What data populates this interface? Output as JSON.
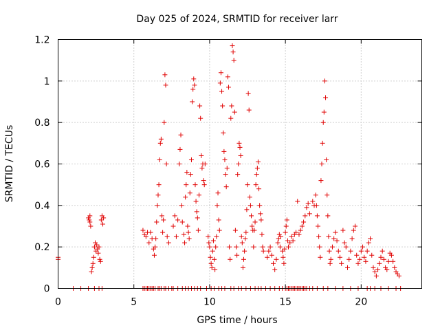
{
  "chart_data": {
    "type": "scatter",
    "title": "Day 025 of 2024, SRMTID for receiver larr",
    "xlabel": "GPS time / hours",
    "ylabel": "SRMTID / TECUs",
    "xlim": [
      0,
      24
    ],
    "ylim": [
      0,
      1.2
    ],
    "xticks": [
      0,
      5,
      10,
      15,
      20
    ],
    "yticks": [
      0,
      0.2,
      0.4,
      0.6,
      0.8,
      1,
      1.2
    ],
    "ytick_labels": [
      "0",
      "0.2",
      "0.4",
      "0.6",
      "0.8",
      "1",
      "1.2"
    ],
    "grid": true,
    "marker": "+",
    "series": [
      {
        "name": "SRMTID",
        "color": "#e00000",
        "points": [
          [
            0.0,
            0.15
          ],
          [
            0.0,
            0.14
          ],
          [
            2.0,
            0.34
          ],
          [
            2.05,
            0.33
          ],
          [
            2.1,
            0.32
          ],
          [
            2.15,
            0.3
          ],
          [
            2.1,
            0.35
          ],
          [
            2.2,
            0.08
          ],
          [
            2.25,
            0.1
          ],
          [
            2.3,
            0.12
          ],
          [
            2.35,
            0.15
          ],
          [
            2.4,
            0.2
          ],
          [
            2.45,
            0.22
          ],
          [
            2.5,
            0.18
          ],
          [
            2.55,
            0.21
          ],
          [
            2.6,
            0.19
          ],
          [
            2.65,
            0.17
          ],
          [
            2.7,
            0.2
          ],
          [
            2.75,
            0.14
          ],
          [
            2.8,
            0.13
          ],
          [
            2.85,
            0.33
          ],
          [
            2.9,
            0.35
          ],
          [
            2.95,
            0.31
          ],
          [
            3.0,
            0.34
          ],
          [
            5.6,
            0.28
          ],
          [
            5.7,
            0.26
          ],
          [
            5.8,
            0.25
          ],
          [
            5.9,
            0.27
          ],
          [
            6.0,
            0.22
          ],
          [
            6.1,
            0.27
          ],
          [
            6.2,
            0.24
          ],
          [
            6.3,
            0.19
          ],
          [
            6.35,
            0.16
          ],
          [
            6.4,
            0.2
          ],
          [
            6.45,
            0.24
          ],
          [
            6.5,
            0.32
          ],
          [
            6.55,
            0.4
          ],
          [
            6.6,
            0.45
          ],
          [
            6.65,
            0.5
          ],
          [
            6.7,
            0.62
          ],
          [
            6.75,
            0.7
          ],
          [
            6.8,
            0.72
          ],
          [
            6.85,
            0.35
          ],
          [
            6.9,
            0.27
          ],
          [
            6.95,
            0.33
          ],
          [
            7.0,
            0.8
          ],
          [
            7.05,
            1.03
          ],
          [
            7.1,
            0.98
          ],
          [
            7.15,
            0.6
          ],
          [
            7.2,
            0.25
          ],
          [
            7.3,
            0.22
          ],
          [
            7.6,
            0.3
          ],
          [
            7.7,
            0.35
          ],
          [
            7.8,
            0.25
          ],
          [
            7.9,
            0.33
          ],
          [
            8.0,
            0.6
          ],
          [
            8.05,
            0.67
          ],
          [
            8.1,
            0.74
          ],
          [
            8.15,
            0.4
          ],
          [
            8.2,
            0.32
          ],
          [
            8.3,
            0.26
          ],
          [
            8.35,
            0.22
          ],
          [
            8.4,
            0.44
          ],
          [
            8.45,
            0.5
          ],
          [
            8.5,
            0.56
          ],
          [
            8.55,
            0.3
          ],
          [
            8.6,
            0.27
          ],
          [
            8.65,
            0.24
          ],
          [
            8.7,
            0.46
          ],
          [
            8.75,
            0.55
          ],
          [
            8.8,
            0.62
          ],
          [
            8.85,
            0.9
          ],
          [
            8.9,
            0.96
          ],
          [
            8.95,
            1.01
          ],
          [
            9.0,
            0.98
          ],
          [
            9.05,
            0.5
          ],
          [
            9.1,
            0.42
          ],
          [
            9.15,
            0.37
          ],
          [
            9.2,
            0.34
          ],
          [
            9.25,
            0.28
          ],
          [
            9.3,
            0.45
          ],
          [
            9.35,
            0.88
          ],
          [
            9.4,
            0.82
          ],
          [
            9.45,
            0.64
          ],
          [
            9.5,
            0.58
          ],
          [
            9.55,
            0.6
          ],
          [
            9.6,
            0.52
          ],
          [
            9.65,
            0.5
          ],
          [
            9.7,
            0.6
          ],
          [
            9.9,
            0.25
          ],
          [
            9.95,
            0.22
          ],
          [
            10.0,
            0.2
          ],
          [
            10.05,
            0.15
          ],
          [
            10.1,
            0.12
          ],
          [
            10.15,
            0.1
          ],
          [
            10.2,
            0.18
          ],
          [
            10.25,
            0.23
          ],
          [
            10.3,
            0.14
          ],
          [
            10.35,
            0.09
          ],
          [
            10.4,
            0.2
          ],
          [
            10.45,
            0.25
          ],
          [
            10.5,
            0.4
          ],
          [
            10.55,
            0.46
          ],
          [
            10.6,
            0.33
          ],
          [
            10.65,
            0.28
          ],
          [
            10.7,
            0.99
          ],
          [
            10.75,
            1.04
          ],
          [
            10.8,
            0.95
          ],
          [
            10.85,
            0.88
          ],
          [
            10.9,
            0.75
          ],
          [
            10.95,
            0.66
          ],
          [
            11.0,
            0.62
          ],
          [
            11.05,
            0.55
          ],
          [
            11.1,
            0.49
          ],
          [
            11.15,
            0.58
          ],
          [
            11.2,
            1.02
          ],
          [
            11.25,
            0.97
          ],
          [
            11.3,
            0.2
          ],
          [
            11.35,
            0.14
          ],
          [
            11.4,
            0.82
          ],
          [
            11.45,
            0.88
          ],
          [
            11.5,
            1.17
          ],
          [
            11.55,
            1.14
          ],
          [
            11.6,
            1.1
          ],
          [
            11.65,
            0.85
          ],
          [
            11.7,
            0.28
          ],
          [
            11.75,
            0.2
          ],
          [
            11.8,
            0.16
          ],
          [
            11.85,
            0.55
          ],
          [
            11.9,
            0.6
          ],
          [
            11.95,
            0.7
          ],
          [
            12.0,
            0.68
          ],
          [
            12.05,
            0.64
          ],
          [
            12.1,
            0.25
          ],
          [
            12.15,
            0.22
          ],
          [
            12.2,
            0.1
          ],
          [
            12.25,
            0.14
          ],
          [
            12.3,
            0.18
          ],
          [
            12.35,
            0.24
          ],
          [
            12.4,
            0.27
          ],
          [
            12.45,
            0.38
          ],
          [
            12.5,
            0.5
          ],
          [
            12.55,
            0.94
          ],
          [
            12.6,
            0.86
          ],
          [
            12.65,
            0.44
          ],
          [
            12.7,
            0.4
          ],
          [
            12.75,
            0.35
          ],
          [
            12.8,
            0.3
          ],
          [
            12.85,
            0.28
          ],
          [
            12.9,
            0.2
          ],
          [
            12.95,
            0.28
          ],
          [
            13.0,
            0.32
          ],
          [
            13.05,
            0.5
          ],
          [
            13.1,
            0.55
          ],
          [
            13.15,
            0.58
          ],
          [
            13.2,
            0.61
          ],
          [
            13.25,
            0.48
          ],
          [
            13.3,
            0.4
          ],
          [
            13.35,
            0.36
          ],
          [
            13.4,
            0.33
          ],
          [
            13.45,
            0.26
          ],
          [
            13.5,
            0.2
          ],
          [
            13.55,
            0.18
          ],
          [
            13.8,
            0.15
          ],
          [
            13.9,
            0.18
          ],
          [
            14.0,
            0.2
          ],
          [
            14.1,
            0.16
          ],
          [
            14.2,
            0.12
          ],
          [
            14.3,
            0.09
          ],
          [
            14.4,
            0.14
          ],
          [
            14.5,
            0.22
          ],
          [
            14.55,
            0.24
          ],
          [
            14.6,
            0.26
          ],
          [
            14.65,
            0.2
          ],
          [
            14.7,
            0.25
          ],
          [
            14.8,
            0.18
          ],
          [
            14.85,
            0.15
          ],
          [
            14.9,
            0.12
          ],
          [
            14.95,
            0.19
          ],
          [
            15.0,
            0.27
          ],
          [
            15.05,
            0.3
          ],
          [
            15.1,
            0.33
          ],
          [
            15.15,
            0.23
          ],
          [
            15.2,
            0.2
          ],
          [
            15.3,
            0.22
          ],
          [
            15.4,
            0.25
          ],
          [
            15.5,
            0.23
          ],
          [
            15.6,
            0.26
          ],
          [
            15.7,
            0.27
          ],
          [
            15.8,
            0.42
          ],
          [
            15.9,
            0.26
          ],
          [
            16.0,
            0.28
          ],
          [
            16.1,
            0.3
          ],
          [
            16.2,
            0.32
          ],
          [
            16.3,
            0.35
          ],
          [
            16.4,
            0.39
          ],
          [
            16.5,
            0.41
          ],
          [
            16.6,
            0.36
          ],
          [
            16.8,
            0.42
          ],
          [
            16.9,
            0.4
          ],
          [
            17.0,
            0.45
          ],
          [
            17.05,
            0.4
          ],
          [
            17.1,
            0.35
          ],
          [
            17.15,
            0.3
          ],
          [
            17.2,
            0.25
          ],
          [
            17.25,
            0.2
          ],
          [
            17.3,
            0.15
          ],
          [
            17.35,
            0.52
          ],
          [
            17.4,
            0.6
          ],
          [
            17.45,
            0.7
          ],
          [
            17.5,
            0.8
          ],
          [
            17.55,
            0.85
          ],
          [
            17.6,
            1.0
          ],
          [
            17.65,
            0.92
          ],
          [
            17.7,
            0.62
          ],
          [
            17.75,
            0.45
          ],
          [
            17.8,
            0.35
          ],
          [
            17.85,
            0.25
          ],
          [
            17.9,
            0.18
          ],
          [
            17.95,
            0.12
          ],
          [
            18.0,
            0.14
          ],
          [
            18.1,
            0.2
          ],
          [
            18.2,
            0.24
          ],
          [
            18.3,
            0.27
          ],
          [
            18.4,
            0.23
          ],
          [
            18.5,
            0.18
          ],
          [
            18.6,
            0.15
          ],
          [
            18.7,
            0.12
          ],
          [
            18.8,
            0.28
          ],
          [
            18.9,
            0.22
          ],
          [
            19.0,
            0.2
          ],
          [
            19.1,
            0.1
          ],
          [
            19.2,
            0.14
          ],
          [
            19.3,
            0.18
          ],
          [
            19.4,
            0.24
          ],
          [
            19.5,
            0.28
          ],
          [
            19.6,
            0.3
          ],
          [
            19.7,
            0.16
          ],
          [
            19.8,
            0.12
          ],
          [
            19.9,
            0.14
          ],
          [
            20.0,
            0.18
          ],
          [
            20.1,
            0.2
          ],
          [
            20.2,
            0.15
          ],
          [
            20.3,
            0.13
          ],
          [
            20.4,
            0.18
          ],
          [
            20.5,
            0.22
          ],
          [
            20.6,
            0.24
          ],
          [
            20.7,
            0.16
          ],
          [
            20.8,
            0.1
          ],
          [
            20.9,
            0.08
          ],
          [
            21.0,
            0.06
          ],
          [
            21.1,
            0.09
          ],
          [
            21.2,
            0.12
          ],
          [
            21.3,
            0.15
          ],
          [
            21.4,
            0.18
          ],
          [
            21.5,
            0.14
          ],
          [
            21.6,
            0.1
          ],
          [
            21.7,
            0.09
          ],
          [
            21.8,
            0.13
          ],
          [
            21.9,
            0.17
          ],
          [
            22.0,
            0.16
          ],
          [
            22.1,
            0.13
          ],
          [
            22.2,
            0.1
          ],
          [
            22.3,
            0.08
          ],
          [
            22.4,
            0.07
          ],
          [
            22.5,
            0.06
          ]
        ],
        "zero_points": [
          1.0,
          1.5,
          2.0,
          2.4,
          2.7,
          2.9,
          5.6,
          5.7,
          5.8,
          5.9,
          6.0,
          6.1,
          6.2,
          6.3,
          6.4,
          6.6,
          6.7,
          6.8,
          7.0,
          7.1,
          7.3,
          7.5,
          7.6,
          7.9,
          8.2,
          8.4,
          8.6,
          8.8,
          9.0,
          9.2,
          9.4,
          9.8,
          10.1,
          10.3,
          10.6,
          10.8,
          11.0,
          11.4,
          11.6,
          11.9,
          12.1,
          12.4,
          12.7,
          13.0,
          13.2,
          13.4,
          13.7,
          14.0,
          14.3,
          14.6,
          14.8,
          15.0,
          15.1,
          15.2,
          15.3,
          15.4,
          15.5,
          15.6,
          15.7,
          15.8,
          15.9,
          16.0,
          16.1,
          16.2,
          16.3,
          16.4,
          16.6,
          16.8,
          17.1,
          17.5,
          17.8,
          18.3,
          18.8,
          19.3,
          19.8,
          20.4,
          20.6,
          20.9,
          21.3,
          21.8,
          22.3,
          22.6
        ]
      }
    ]
  }
}
